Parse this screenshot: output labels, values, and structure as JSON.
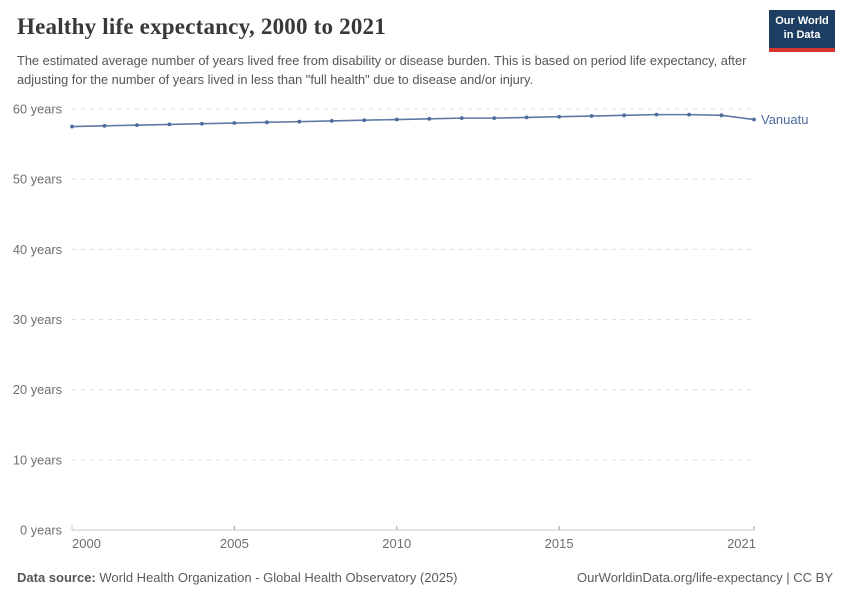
{
  "header": {
    "title": "Healthy life expectancy, 2000 to 2021",
    "subtitle": "The estimated average number of years lived free from disability or disease burden. This is based on period life expectancy, after adjusting for the number of years lived in less than \"full health\" due to disease and/or injury.",
    "logo": {
      "line1": "Our World",
      "line2": "in Data",
      "bg": "#1d3d63",
      "accent": "#d4342c",
      "text_color": "#ffffff"
    }
  },
  "chart_data": {
    "type": "line",
    "title": "Healthy life expectancy, 2000 to 2021",
    "x": [
      2000,
      2001,
      2002,
      2003,
      2004,
      2005,
      2006,
      2007,
      2008,
      2009,
      2010,
      2011,
      2012,
      2013,
      2014,
      2015,
      2016,
      2017,
      2018,
      2019,
      2020,
      2021
    ],
    "series": [
      {
        "name": "Vanuatu",
        "color": "#4C6A9C",
        "values": [
          57.5,
          57.6,
          57.7,
          57.8,
          57.9,
          58.0,
          58.1,
          58.2,
          58.3,
          58.4,
          58.5,
          58.6,
          58.7,
          58.7,
          58.8,
          58.9,
          59.0,
          59.1,
          59.2,
          59.2,
          59.1,
          58.5
        ]
      }
    ],
    "xlabel": "",
    "ylabel": "",
    "ylim": [
      0,
      60
    ],
    "ytick_step": 10,
    "ytick_suffix": " years",
    "yticks": [
      0,
      10,
      20,
      30,
      40,
      50,
      60
    ],
    "xticks": [
      2000,
      2005,
      2010,
      2015,
      2021
    ],
    "grid": "dashed-horizontal",
    "legend_position": "end-of-line-label",
    "end_label": "Vanuatu",
    "grid_color": "#dcdcdc",
    "axis_color": "#c8c8c8",
    "tick_color": "#9a9a9a",
    "tick_label_color": "#6e6e6e"
  },
  "footer": {
    "source_label": "Data source:",
    "source_text": " World Health Organization - Global Health Observatory (2025)",
    "right_text": "OurWorldinData.org/life-expectancy | CC BY"
  }
}
